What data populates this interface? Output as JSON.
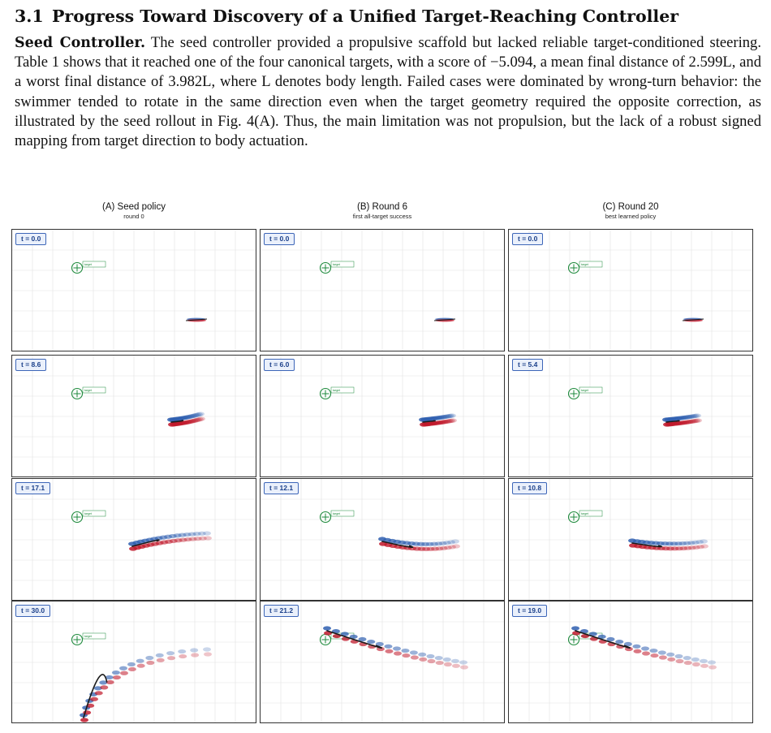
{
  "section": {
    "number": "3.1",
    "title": "Progress Toward Discovery of a Unified Target-Reaching Controller"
  },
  "paragraph": {
    "lead": "Seed Controller.",
    "text": " The seed controller provided a propulsive scaffold but lacked reliable target-conditioned steering. Table 1 shows that it reached one of the four canonical targets, with a score of −5.094, a mean final distance of 2.599L, and a worst final distance of 3.982L, where L denotes body length. Failed cases were dominated by wrong-turn behavior: the swimmer tended to rotate in the same direction even when the target geometry required the opposite correction, as illustrated by the seed rollout in Fig. 4(A). Thus, the main limitation was not propulsion, but the lack of a robust signed mapping from target direction to body actuation."
  },
  "figure": {
    "columns": [
      {
        "title": "(A) Seed policy",
        "subtitle": "round 0",
        "times": [
          "t = 0.0",
          "t = 8.6",
          "t = 17.1",
          "t = 30.0"
        ]
      },
      {
        "title": "(B) Round 6",
        "subtitle": "first all-target success",
        "times": [
          "t = 0.0",
          "t = 6.0",
          "t = 12.1",
          "t = 21.2"
        ]
      },
      {
        "title": "(C) Round 20",
        "subtitle": "best learned policy",
        "times": [
          "t = 0.0",
          "t = 5.4",
          "t = 10.8",
          "t = 19.0"
        ]
      }
    ],
    "target_label": "target",
    "colors": {
      "wake_red": "#c0182a",
      "wake_blue": "#2f5fb0",
      "target": "#1e8a3c",
      "badge": "#3d66b8"
    }
  }
}
